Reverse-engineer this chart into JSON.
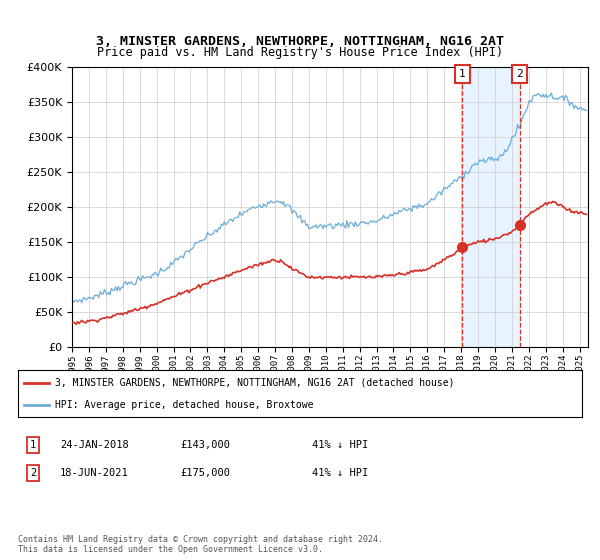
{
  "title": "3, MINSTER GARDENS, NEWTHORPE, NOTTINGHAM, NG16 2AT",
  "subtitle": "Price paid vs. HM Land Registry's House Price Index (HPI)",
  "legend_line1": "3, MINSTER GARDENS, NEWTHORPE, NOTTINGHAM, NG16 2AT (detached house)",
  "legend_line2": "HPI: Average price, detached house, Broxtowe",
  "footnote": "Contains HM Land Registry data © Crown copyright and database right 2024.\nThis data is licensed under the Open Government Licence v3.0.",
  "sale1_label": "1",
  "sale1_date": "24-JAN-2018",
  "sale1_price": "£143,000",
  "sale1_hpi": "41% ↓ HPI",
  "sale1_year": 2018.07,
  "sale1_price_val": 143000,
  "sale2_label": "2",
  "sale2_date": "18-JUN-2021",
  "sale2_price": "£175,000",
  "sale2_hpi": "41% ↓ HPI",
  "sale2_year": 2021.46,
  "sale2_price_val": 175000,
  "ylim": [
    0,
    400000
  ],
  "xlim_start": 1995.0,
  "xlim_end": 2025.5,
  "hpi_color": "#6baed6",
  "property_color": "#d73027",
  "dashed_color": "#d73027",
  "shaded_color": "#ddeeff",
  "grid_color": "#cccccc",
  "bg_color": "#ffffff"
}
